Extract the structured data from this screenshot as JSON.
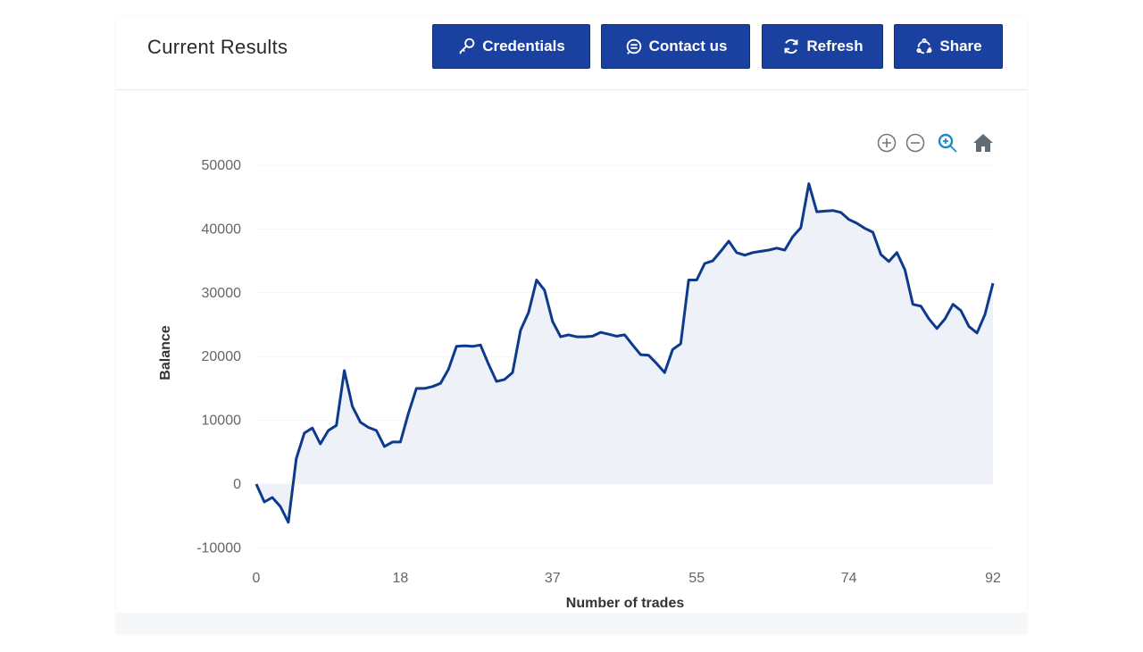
{
  "header": {
    "title": "Current Results",
    "buttons": [
      {
        "label": "Credentials",
        "icon": "key-icon"
      },
      {
        "label": "Contact us",
        "icon": "chat-icon"
      },
      {
        "label": "Refresh",
        "icon": "refresh-icon"
      },
      {
        "label": "Share",
        "icon": "share-icon"
      }
    ]
  },
  "toolbar": [
    "zoom-in-icon",
    "zoom-out-icon",
    "zoom-icon",
    "home-icon"
  ],
  "colors": {
    "accent": "#1a40a0",
    "line": "#0d3a8c",
    "fill": "#eef2f8",
    "zoom_active": "#1e88c8"
  },
  "chart_data": {
    "type": "area",
    "title": "",
    "xlabel": "Number of trades",
    "ylabel": "Balance",
    "xlim": [
      0,
      92
    ],
    "ylim": [
      -10000,
      50000
    ],
    "x_ticks": [
      "0",
      "18",
      "37",
      "55",
      "74",
      "92"
    ],
    "x_tick_values": [
      0,
      18,
      37,
      55,
      74,
      92
    ],
    "y_ticks": [
      "50000",
      "40000",
      "30000",
      "20000",
      "10000",
      "0",
      "-10000"
    ],
    "y_tick_values": [
      50000,
      40000,
      30000,
      20000,
      10000,
      0,
      -10000
    ],
    "grid": true,
    "series": [
      {
        "name": "Balance",
        "values": [
          0,
          -2800,
          -2100,
          -3500,
          -6000,
          4000,
          8000,
          8800,
          6300,
          8400,
          9200,
          17800,
          12200,
          9700,
          8900,
          8400,
          5900,
          6600,
          6600,
          11100,
          15000,
          15000,
          15300,
          15800,
          18000,
          21600,
          21700,
          21600,
          21800,
          18800,
          16100,
          16400,
          17500,
          24100,
          26900,
          32000,
          30400,
          25500,
          23100,
          23400,
          23100,
          23100,
          23200,
          23800,
          23500,
          23200,
          23400,
          21800,
          20300,
          20200,
          18900,
          17500,
          21100,
          22000,
          32000,
          32000,
          34600,
          35000,
          36500,
          38100,
          36300,
          35900,
          36300,
          36500,
          36700,
          37000,
          36700,
          38800,
          40200,
          47100,
          42700,
          42800,
          42900,
          42600,
          41500,
          40900,
          40100,
          39500,
          36000,
          34900,
          36300,
          33600,
          28200,
          27900,
          25900,
          24400,
          25900,
          28200,
          27200,
          24700,
          23700,
          26600,
          31500
        ]
      }
    ]
  }
}
